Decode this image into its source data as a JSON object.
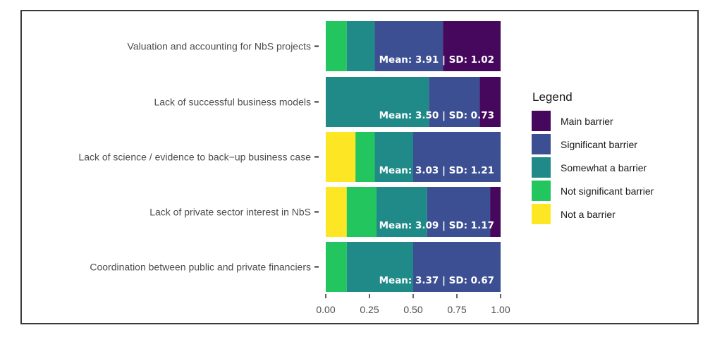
{
  "chart_data": {
    "type": "bar",
    "orientation": "horizontal",
    "stacked": true,
    "categories": [
      "Valuation and accounting for NbS projects",
      "Lack of successful business models",
      "Lack of science / evidence to back−up business case",
      "Lack of private sector interest in NbS",
      "Coordination between public and private financiers"
    ],
    "series": [
      {
        "name": "Not a barrier",
        "color": "#fde725",
        "values": [
          0.0,
          0.0,
          0.17,
          0.12,
          0.0
        ]
      },
      {
        "name": "Not significant barrier",
        "color": "#22c55e",
        "values": [
          0.12,
          0.0,
          0.11,
          0.17,
          0.12
        ]
      },
      {
        "name": "Somewhat a barrier",
        "color": "#1f8a88",
        "values": [
          0.16,
          0.59,
          0.22,
          0.29,
          0.38
        ]
      },
      {
        "name": "Significant barrier",
        "color": "#3b4f92",
        "values": [
          0.39,
          0.29,
          0.5,
          0.36,
          0.5
        ]
      },
      {
        "name": "Main barrier",
        "color": "#46085c",
        "values": [
          0.33,
          0.12,
          0.0,
          0.06,
          0.0
        ]
      }
    ],
    "legend_order": [
      "Main barrier",
      "Significant barrier",
      "Somewhat a barrier",
      "Not significant barrier",
      "Not a barrier"
    ],
    "bar_labels": [
      "Mean: 3.91 | SD: 1.02",
      "Mean: 3.50 | SD: 0.73",
      "Mean: 3.03 | SD: 1.21",
      "Mean: 3.09 | SD: 1.17",
      "Mean: 3.37 | SD: 0.67"
    ],
    "x_ticks": [
      "0.00",
      "0.25",
      "0.50",
      "0.75",
      "1.00"
    ],
    "xlim": [
      0,
      1
    ],
    "legend_title": "Legend",
    "legend_position": "right",
    "grid": false
  }
}
